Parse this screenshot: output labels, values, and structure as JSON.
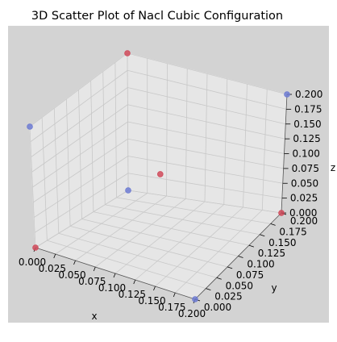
{
  "chart_data": {
    "type": "scatter",
    "projection": "3d",
    "title": "3D Scatter Plot of Nacl Cubic Configuration",
    "xlabel": "x",
    "ylabel": "y",
    "zlabel": "z",
    "xlim": [
      0,
      0.2
    ],
    "ylim": [
      0,
      0.2
    ],
    "zlim": [
      0,
      0.2
    ],
    "xticks": [
      "0.000",
      "0.025",
      "0.050",
      "0.075",
      "0.100",
      "0.125",
      "0.150",
      "0.175",
      "0.200"
    ],
    "yticks": [
      "0.000",
      "0.025",
      "0.050",
      "0.075",
      "0.100",
      "0.125",
      "0.150",
      "0.175",
      "0.200"
    ],
    "zticks": [
      "0.000",
      "0.025",
      "0.050",
      "0.075",
      "0.100",
      "0.125",
      "0.150",
      "0.175",
      "0.200"
    ],
    "grid": true,
    "background_color": "#d3d3d3",
    "pane_color": "#e6e6e6",
    "series": [
      {
        "color": "#d04a5a",
        "points": [
          {
            "x": 0,
            "y": 0,
            "z": 0
          },
          {
            "x": 0,
            "y": 0.2,
            "z": 0.2
          },
          {
            "x": 0.2,
            "y": 0.2,
            "z": 0
          },
          {
            "x": 0.1,
            "y": 0.1,
            "z": 0.1
          }
        ]
      },
      {
        "color": "#6d7bd2",
        "points": [
          {
            "x": 0,
            "y": 0,
            "z": 0.2
          },
          {
            "x": 0.2,
            "y": 0,
            "z": 0
          },
          {
            "x": 0,
            "y": 0.2,
            "z": 0
          },
          {
            "x": 0.2,
            "y": 0.2,
            "z": 0.2
          }
        ]
      }
    ]
  }
}
